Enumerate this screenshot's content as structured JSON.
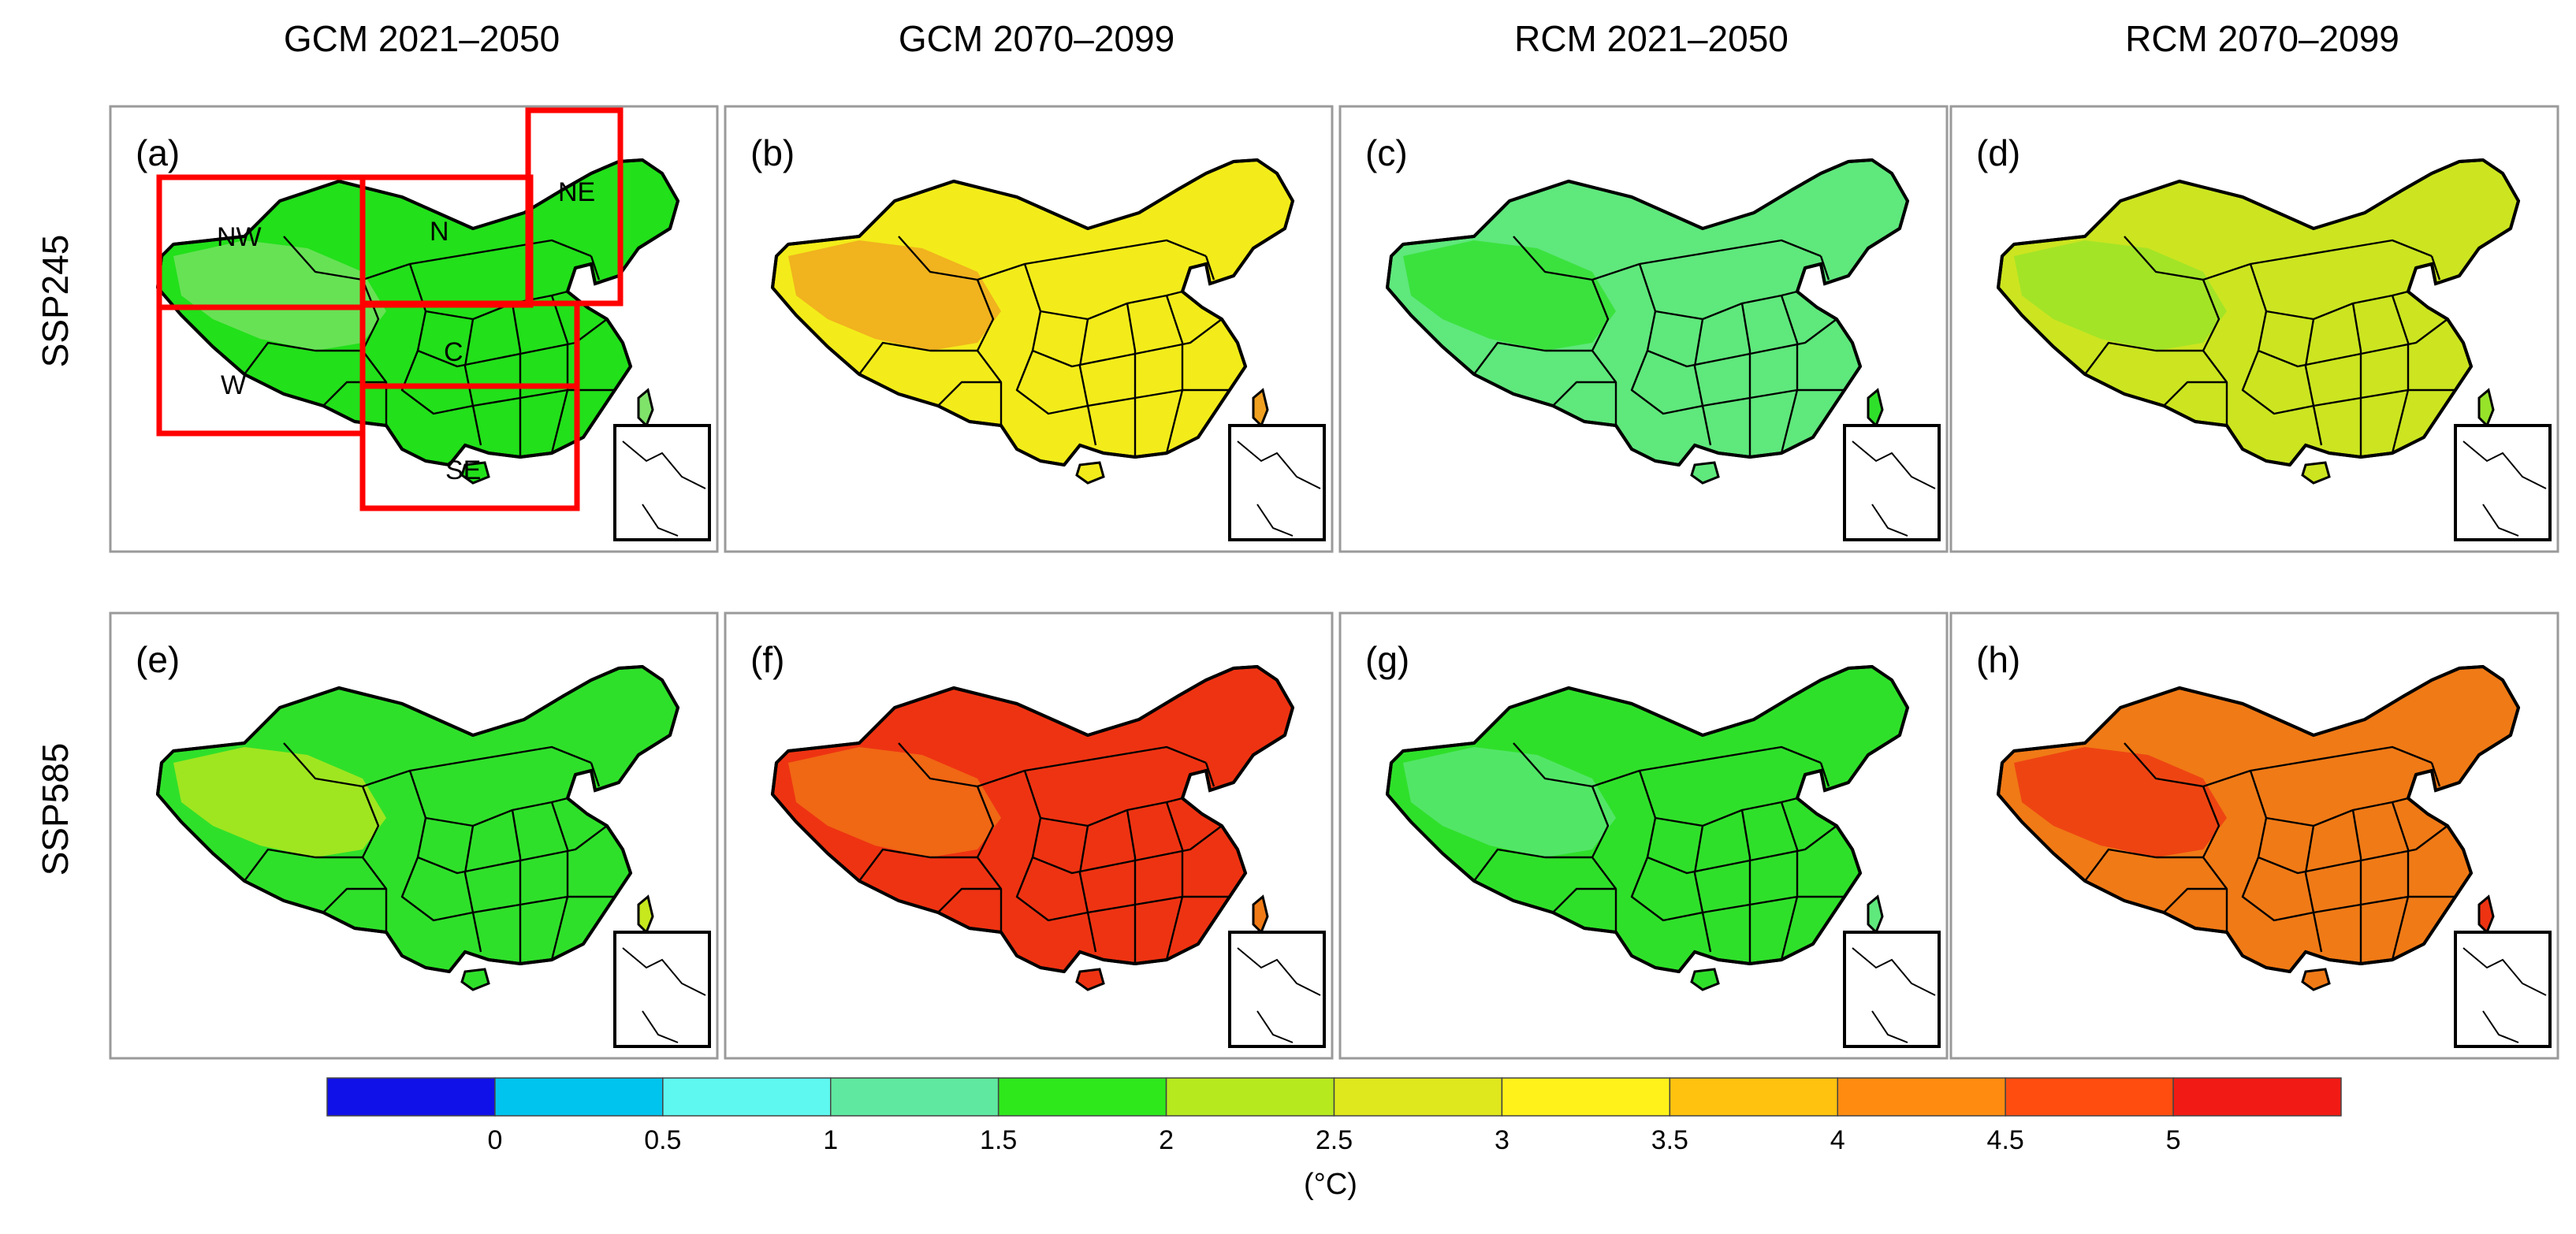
{
  "columns": [
    "GCM 2021–2050",
    "GCM 2070–2099",
    "RCM 2021–2050",
    "RCM 2070–2099"
  ],
  "rows": [
    "SSP245",
    "SSP585"
  ],
  "panels": [
    {
      "label": "(a)",
      "fill": "#22e01a",
      "patch": "#7fe36a"
    },
    {
      "label": "(b)",
      "fill": "#f3ec1a",
      "patch": "#f0a020"
    },
    {
      "label": "(c)",
      "fill": "#5fe87c",
      "patch": "#2fe02a"
    },
    {
      "label": "(d)",
      "fill": "#cce520",
      "patch": "#96e32a"
    },
    {
      "label": "(e)",
      "fill": "#2fe02a",
      "patch": "#c6e81d"
    },
    {
      "label": "(f)",
      "fill": "#ee3312",
      "patch": "#f07a16"
    },
    {
      "label": "(g)",
      "fill": "#2fe02a",
      "patch": "#5fe87c"
    },
    {
      "label": "(h)",
      "fill": "#f07a16",
      "patch": "#ee3312"
    }
  ],
  "regions": [
    "NW",
    "N",
    "NE",
    "C",
    "W",
    "SE"
  ],
  "colorbar": {
    "colors": [
      "#1010e8",
      "#00c4ee",
      "#5ef8f0",
      "#5fe8a0",
      "#2ee81c",
      "#b6ea1e",
      "#dfe81c",
      "#fff21a",
      "#ffc20e",
      "#ff8c10",
      "#ff4d10",
      "#f21a14"
    ],
    "ticks": [
      "0",
      "0.5",
      "1",
      "1.5",
      "2",
      "2.5",
      "3",
      "3.5",
      "4",
      "4.5",
      "5"
    ],
    "unit": "(°C)"
  }
}
